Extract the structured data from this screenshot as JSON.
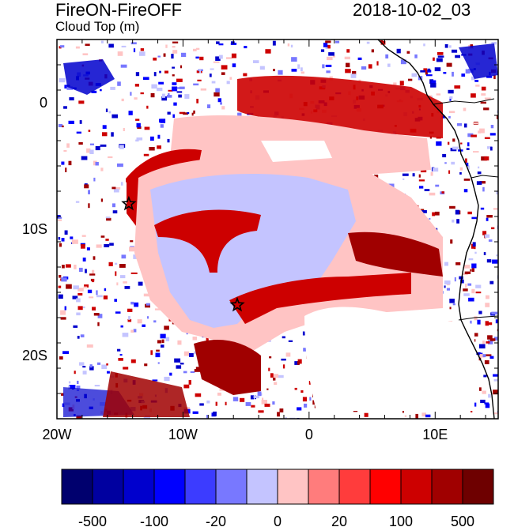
{
  "header": {
    "title": "FireON-FireOFF",
    "subtitle": "Cloud Top (m)",
    "timestamp": "2018-10-02_03"
  },
  "map": {
    "lon_range": [
      -20,
      15
    ],
    "lat_range": [
      -25,
      5
    ],
    "x_ticks": [
      {
        "value": -20,
        "label": "20W"
      },
      {
        "value": -10,
        "label": "10W"
      },
      {
        "value": 0,
        "label": "0"
      },
      {
        "value": 10,
        "label": "10E"
      }
    ],
    "y_ticks": [
      {
        "value": 0,
        "label": "0"
      },
      {
        "value": -10,
        "label": "10S"
      },
      {
        "value": -20,
        "label": "20S"
      }
    ],
    "markers": [
      {
        "name": "star-marker",
        "lon": -14.3,
        "lat": -8.0
      },
      {
        "name": "star-marker",
        "lon": -5.7,
        "lat": -16.0
      }
    ]
  },
  "colorbar": {
    "colors": [
      "#00006e",
      "#0000a0",
      "#0000cd",
      "#0000ff",
      "#3c3cff",
      "#7878ff",
      "#c4c4ff",
      "#ffc4c4",
      "#ff7c7c",
      "#ff3c3c",
      "#ff0000",
      "#cd0000",
      "#a00000",
      "#6e0000"
    ],
    "labels": [
      "-500",
      "-100",
      "-20",
      "0",
      "20",
      "100",
      "500"
    ]
  },
  "colors": {
    "dark_red": "#a00000",
    "red": "#cd0000",
    "light_pink": "#ffc4c4",
    "light_blue": "#c4c4ff",
    "blue": "#0000cd",
    "coast": "#000000"
  }
}
